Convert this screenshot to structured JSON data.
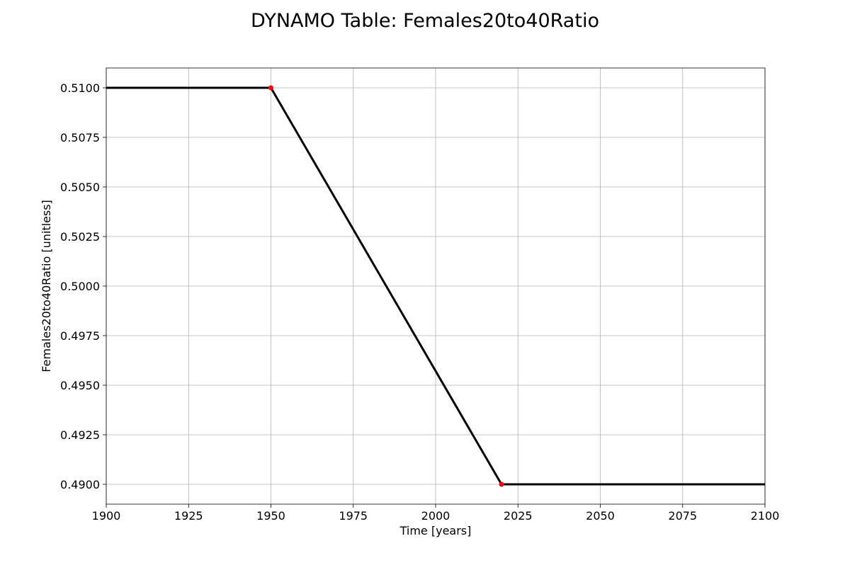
{
  "chart_data": {
    "type": "line",
    "title": "DYNAMO Table: Females20to40Ratio",
    "xlabel": "Time [years]",
    "ylabel": "Females20to40Ratio [unitless]",
    "xlim": [
      1900,
      2100
    ],
    "ylim": [
      0.489,
      0.511
    ],
    "xticks": [
      1900,
      1925,
      1950,
      1975,
      2000,
      2025,
      2050,
      2075,
      2100
    ],
    "xtick_labels": [
      "1900",
      "1925",
      "1950",
      "1975",
      "2000",
      "2025",
      "2050",
      "2075",
      "2100"
    ],
    "yticks": [
      0.49,
      0.4925,
      0.495,
      0.4975,
      0.5,
      0.5025,
      0.505,
      0.5075,
      0.51
    ],
    "ytick_labels": [
      "0.4900",
      "0.4925",
      "0.4950",
      "0.4975",
      "0.5000",
      "0.5025",
      "0.5050",
      "0.5075",
      "0.5100"
    ],
    "grid": true,
    "series": [
      {
        "x": [
          1900,
          1950,
          2020,
          2100
        ],
        "y": [
          0.51,
          0.51,
          0.49,
          0.49
        ],
        "color": "#000000"
      }
    ],
    "markers": {
      "x": [
        1950,
        2020
      ],
      "y": [
        0.51,
        0.49
      ],
      "color": "#ff0000"
    }
  }
}
